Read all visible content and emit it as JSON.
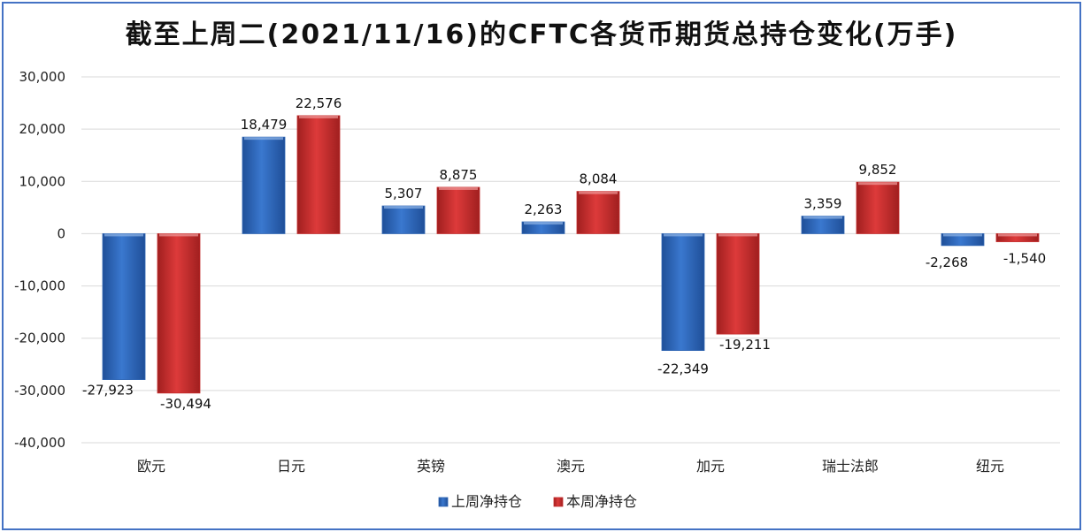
{
  "chart_data": {
    "type": "bar",
    "title": "截至上周二(2021/11/16)的CFTC各货币期货总持仓变化(万手)",
    "categories": [
      "欧元",
      "日元",
      "英镑",
      "澳元",
      "加元",
      "瑞士法郎",
      "纽元"
    ],
    "series": [
      {
        "name": "上周净持仓",
        "values": [
          -27923,
          18479,
          5307,
          2263,
          -22349,
          3359,
          -2268
        ],
        "color": "#2e65b3"
      },
      {
        "name": "本周净持仓",
        "values": [
          -30494,
          22576,
          8875,
          8084,
          -19211,
          9852,
          -1540
        ],
        "color": "#c42b2b"
      }
    ],
    "ylim": [
      -40000,
      30000
    ],
    "yticks": [
      30000,
      20000,
      10000,
      0,
      -10000,
      -20000,
      -30000,
      -40000
    ],
    "ytick_labels": [
      "30,000",
      "20,000",
      "10,000",
      "0",
      "-10,000",
      "-20,000",
      "-30,000",
      "-40,000"
    ],
    "data_labels": [
      [
        "-27,923",
        "18,479",
        "5,307",
        "2,263",
        "-22,349",
        "3,359",
        "-2,268"
      ],
      [
        "-30,494",
        "22,576",
        "8,875",
        "8,084",
        "-19,211",
        "9,852",
        "-1,540"
      ]
    ],
    "grid": true,
    "legend_position": "bottom"
  }
}
